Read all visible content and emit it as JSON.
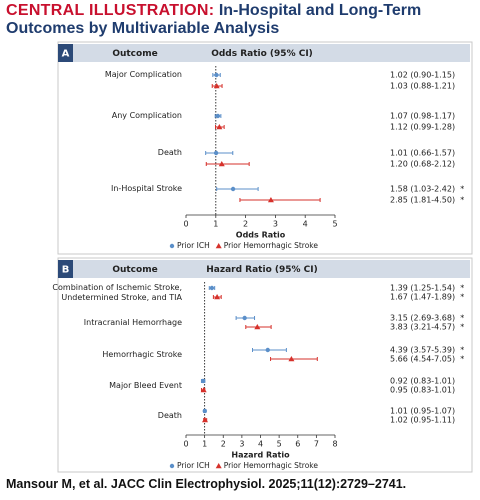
{
  "title_label": "CENTRAL ILLUSTRATION:",
  "title": "In-Hospital and Long-Term Outcomes by Multivariable Analysis",
  "citation": "Mansour M, et al. JACC Clin Electrophysiol. 2025;11(12):2729–2741.",
  "chart_data": [
    {
      "type": "forest",
      "panel_label": "A",
      "category_header": "Outcome",
      "value_header": "Odds Ratio (95% CI)",
      "x_label": "Odds Ratio",
      "categories": [
        "Major Complication",
        "Any Complication",
        "Death",
        "In-Hospital Stroke"
      ],
      "xlim": [
        0,
        5
      ],
      "xticks": [
        0,
        1,
        2,
        3,
        4,
        5
      ],
      "reference_line": 1,
      "series": [
        {
          "name": "Prior ICH",
          "color": "#5b8fc9",
          "marker": "circle",
          "values": [
            1.02,
            1.07,
            1.01,
            1.58
          ],
          "lower": [
            0.9,
            0.98,
            0.66,
            1.03
          ],
          "upper": [
            1.15,
            1.17,
            1.57,
            2.42
          ],
          "value_labels": [
            "1.02 (0.90-1.15)",
            "1.07 (0.98-1.17)",
            "1.01 (0.66-1.57)",
            "1.58 (1.03-2.42)  *"
          ]
        },
        {
          "name": "Prior Hemorrhagic Stroke",
          "color": "#d6312b",
          "marker": "triangle",
          "values": [
            1.03,
            1.12,
            1.2,
            2.85
          ],
          "lower": [
            0.88,
            0.99,
            0.68,
            1.81
          ],
          "upper": [
            1.21,
            1.28,
            2.12,
            4.5
          ],
          "value_labels": [
            "1.03 (0.88-1.21)",
            "1.12 (0.99-1.28)",
            "1.20 (0.68-2.12)",
            "2.85 (1.81-4.50)  *"
          ]
        }
      ]
    },
    {
      "type": "forest",
      "panel_label": "B",
      "category_header": "Outcome",
      "value_header": "Hazard Ratio (95% CI)",
      "x_label": "Hazard Ratio",
      "categories": [
        "Combination of Ischemic Stroke, Undetermined Stroke, and TIA",
        "Intracranial Hemorrhage",
        "Hemorrhagic Stroke",
        "Major Bleed Event",
        "Death"
      ],
      "xlim": [
        0,
        8
      ],
      "xticks": [
        0,
        1,
        2,
        3,
        4,
        5,
        6,
        7,
        8
      ],
      "reference_line": 1,
      "series": [
        {
          "name": "Prior ICH",
          "color": "#5b8fc9",
          "marker": "circle",
          "values": [
            1.39,
            3.15,
            4.39,
            0.92,
            1.01
          ],
          "lower": [
            1.25,
            2.69,
            3.57,
            0.83,
            0.95
          ],
          "upper": [
            1.54,
            3.68,
            5.39,
            1.01,
            1.07
          ],
          "value_labels": [
            "1.39 (1.25-1.54)  *",
            "3.15 (2.69-3.68)  *",
            "4.39 (3.57-5.39)  *",
            "0.92 (0.83-1.01)",
            "1.01 (0.95-1.07)"
          ]
        },
        {
          "name": "Prior Hemorrhagic Stroke",
          "color": "#d6312b",
          "marker": "triangle",
          "values": [
            1.67,
            3.83,
            5.66,
            0.95,
            1.02
          ],
          "lower": [
            1.47,
            3.21,
            4.54,
            0.83,
            0.95
          ],
          "upper": [
            1.89,
            4.57,
            7.05,
            1.01,
            1.11
          ],
          "value_labels": [
            "1.67 (1.47-1.89)  *",
            "3.83 (3.21-4.57)  *",
            "5.66 (4.54-7.05)  *",
            "0.95 (0.83-1.01)",
            "1.02 (0.95-1.11)"
          ]
        }
      ]
    }
  ]
}
